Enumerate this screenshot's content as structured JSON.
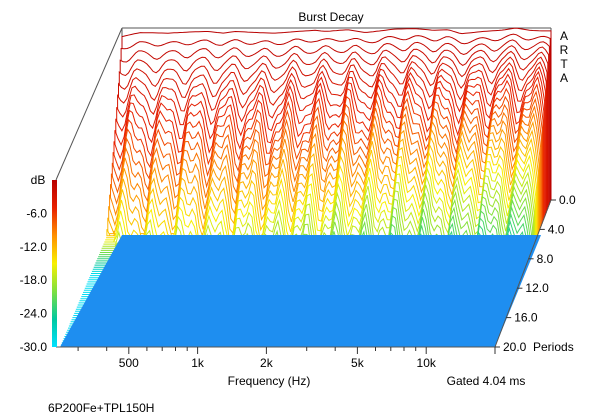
{
  "chart_data": {
    "type": "area",
    "title": "Burst Decay",
    "watermark": "ARTA",
    "xlabel": "Frequency (Hz)",
    "x_scale": "log",
    "x_range_hz": [
      250,
      20000
    ],
    "x_tick_labels": [
      "500",
      "1k",
      "2k",
      "5k",
      "10k"
    ],
    "x_tick_values_hz": [
      500,
      1000,
      2000,
      5000,
      10000
    ],
    "z_axis_label": "dB",
    "z_range_db": [
      -30,
      0
    ],
    "z_tick_labels": [
      "-6.0",
      "-12.0",
      "-18.0",
      "-24.0",
      "-30.0"
    ],
    "z_tick_values_db": [
      -6,
      -12,
      -18,
      -24,
      -30
    ],
    "depth_axis_label": "Periods",
    "depth_range_periods": [
      0,
      20
    ],
    "depth_tick_labels": [
      "0.0",
      "4.0",
      "8.0",
      "12.0",
      "16.0",
      "20.0"
    ],
    "depth_tick_values_periods": [
      0,
      4,
      8,
      12,
      16,
      20
    ],
    "gate_label": "Gated 4.04 ms",
    "footer_label": "6P200Fe+TPL150H",
    "colorscale": [
      "#00e0ff",
      "#00c8a0",
      "#7ee040",
      "#f8f000",
      "#ff9000",
      "#e82000",
      "#b80000"
    ],
    "floor_color": "#1e8ef0",
    "grid": false,
    "colorbar": "left",
    "front_response_db": {
      "freq_hz": [
        250,
        300,
        400,
        500,
        600,
        700,
        800,
        1000,
        1200,
        1500,
        1800,
        2000,
        2500,
        3000,
        3500,
        4000,
        5000,
        6000,
        7000,
        8000,
        10000,
        12000,
        14000,
        16000,
        18000,
        20000
      ],
      "level_db": [
        -1.5,
        -0.8,
        -0.9,
        -0.7,
        -0.6,
        -0.9,
        -0.6,
        -0.8,
        -0.9,
        -0.6,
        -0.4,
        -0.6,
        -0.3,
        -0.8,
        -0.5,
        -0.2,
        -0.1,
        -0.4,
        -0.3,
        -1.0,
        -0.6,
        -0.4,
        0.0,
        -0.4,
        -0.5,
        -0.5
      ]
    }
  }
}
